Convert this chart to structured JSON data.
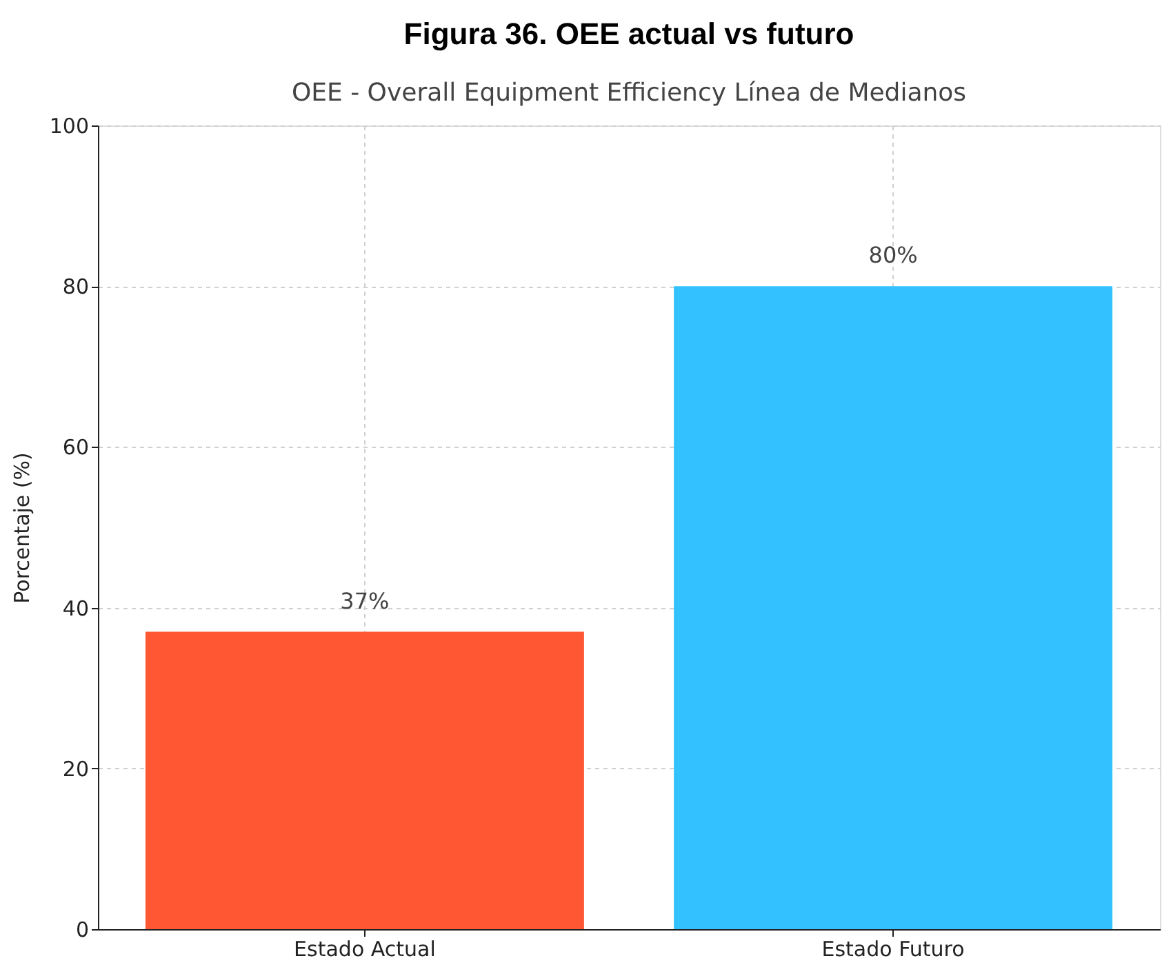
{
  "chart_data": {
    "type": "bar",
    "title": "OEE - Overall Equipment Efficiency Línea de Medianos",
    "annotations": [
      "Figura 36. OEE actual vs futuro"
    ],
    "ylabel": "Porcentaje (%)",
    "categories": [
      "Estado Actual",
      "Estado Futuro"
    ],
    "values": [
      37,
      80
    ],
    "value_labels": [
      "37%",
      "80%"
    ],
    "colors": [
      "#ff5733",
      "#33c1ff"
    ],
    "ylim": [
      0,
      100
    ],
    "yticks": [
      0,
      20,
      40,
      60,
      80,
      100
    ],
    "grid": true
  }
}
